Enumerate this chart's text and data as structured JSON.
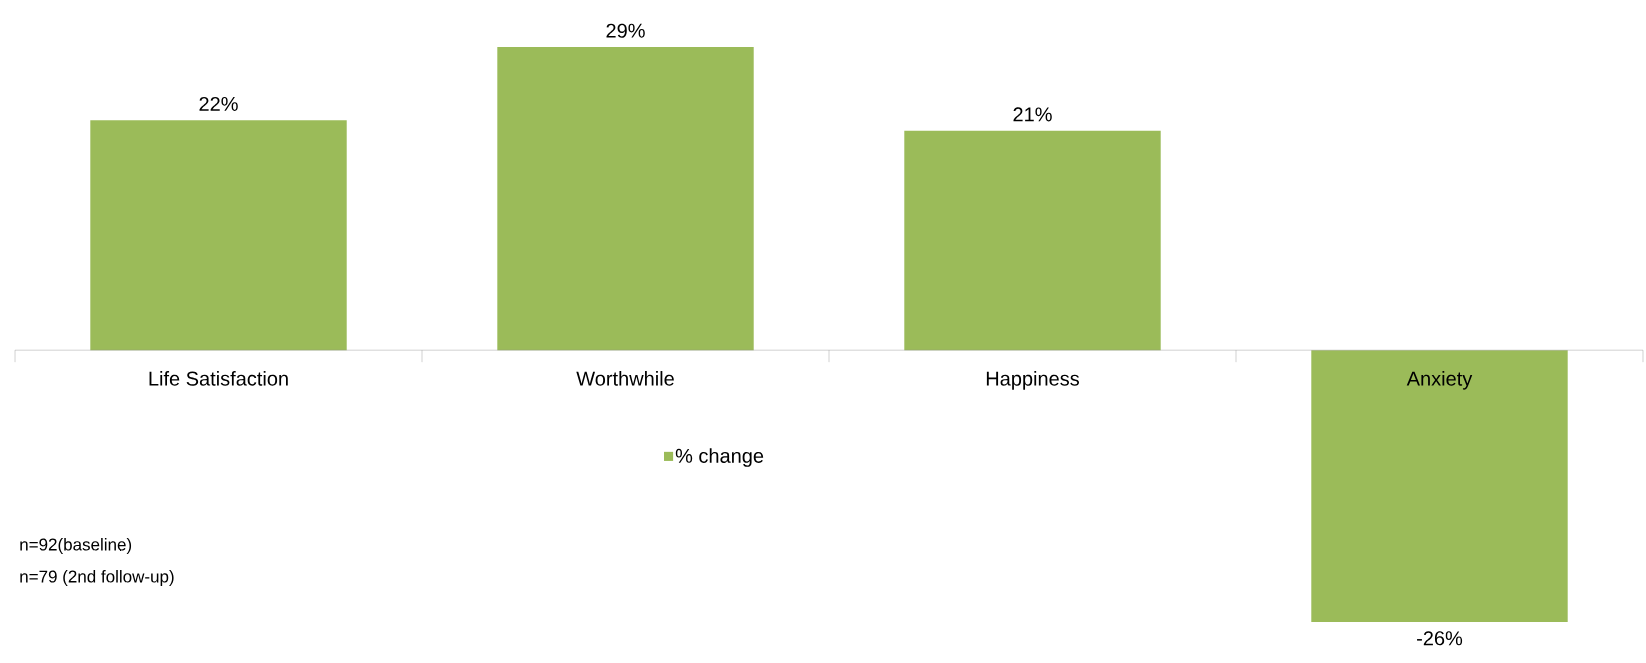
{
  "chart_data": {
    "type": "bar",
    "categories": [
      "Life Satisfaction",
      "Worthwhile",
      "Happiness",
      "Anxiety"
    ],
    "series": [
      {
        "name": "% change",
        "color": "#9bbb59",
        "values": [
          22,
          29,
          21,
          -26
        ],
        "value_labels": [
          "22%",
          "29%",
          "21%",
          "-26%"
        ]
      }
    ],
    "legend": "bottom",
    "annotations": [
      "n=92(baseline)",
      "n=79 (2nd follow-up)"
    ]
  }
}
